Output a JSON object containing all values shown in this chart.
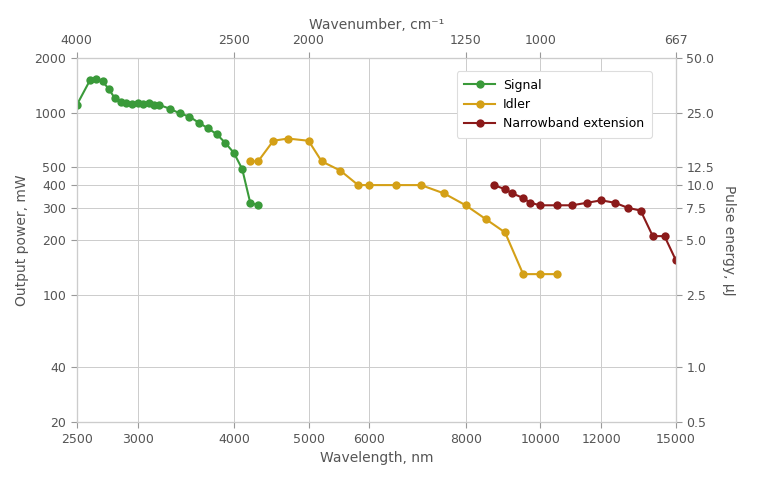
{
  "signal_x": [
    2500,
    2600,
    2650,
    2700,
    2750,
    2800,
    2850,
    2900,
    2950,
    3000,
    3050,
    3100,
    3150,
    3200,
    3300,
    3400,
    3500,
    3600,
    3700,
    3800,
    3900,
    4000,
    4100,
    4200,
    4300
  ],
  "signal_y": [
    1100,
    1500,
    1530,
    1480,
    1350,
    1200,
    1140,
    1130,
    1120,
    1130,
    1120,
    1130,
    1100,
    1100,
    1050,
    990,
    950,
    880,
    820,
    760,
    680,
    600,
    490,
    320,
    310
  ],
  "idler_x": [
    4200,
    4300,
    4500,
    4700,
    5000,
    5200,
    5500,
    5800,
    6000,
    6500,
    7000,
    7500,
    8000,
    8500,
    9000,
    9500,
    10000,
    10500
  ],
  "idler_y": [
    540,
    540,
    700,
    720,
    700,
    540,
    480,
    400,
    400,
    400,
    400,
    360,
    310,
    260,
    220,
    130,
    130,
    130
  ],
  "narrowband_x": [
    8700,
    9000,
    9200,
    9500,
    9700,
    10000,
    10500,
    11000,
    11500,
    12000,
    12500,
    13000,
    13500,
    14000,
    14500,
    15000
  ],
  "narrowband_y": [
    400,
    380,
    360,
    340,
    320,
    310,
    310,
    310,
    320,
    330,
    320,
    300,
    290,
    210,
    210,
    155
  ],
  "signal_color": "#3a9a3a",
  "idler_color": "#d4a017",
  "narrowband_color": "#8b1a1a",
  "bg_color": "#ffffff",
  "grid_color": "#cccccc",
  "xlabel": "Wavelength, nm",
  "ylabel_left": "Output power, mW",
  "ylabel_right": "Pulse energy, μJ",
  "xlabel_top": "Wavenumber, cm⁻¹",
  "legend_signal": "Signal",
  "legend_idler": "Idler",
  "legend_narrowband": "Narrowband extension",
  "ylim_left": [
    20,
    2000
  ],
  "ylim_right": [
    0.5,
    50.0
  ],
  "xlim": [
    2500,
    15000
  ],
  "yticks_left": [
    20,
    40,
    100,
    200,
    300,
    400,
    500,
    1000,
    2000
  ],
  "yticks_left_labels": [
    "20",
    "40",
    "100",
    "200",
    "300",
    "400",
    "500",
    "1000",
    "2000"
  ],
  "yticks_right": [
    0.5,
    1.0,
    2.5,
    5.0,
    7.5,
    10.0,
    12.5,
    25.0,
    50.0
  ],
  "yticks_right_labels": [
    "0.5",
    "1.0",
    "2.5",
    "5.0",
    "7.5",
    "10.0",
    "12.5",
    "25.0",
    "50.0"
  ],
  "xticks_bottom": [
    2500,
    3000,
    4000,
    5000,
    6000,
    8000,
    10000,
    12000,
    15000
  ],
  "xticks_bottom_labels": [
    "2500",
    "3000",
    "4000",
    "5000",
    "6000",
    "8000",
    "10000",
    "12000",
    "15000"
  ],
  "wavenumber_ticks_wl": [
    2500.0,
    4000.0,
    5000.0,
    8000.0,
    10000.0,
    15000.0
  ],
  "wavenumber_ticks_labels": [
    "4000",
    "2500",
    "2000",
    "1250",
    "1000",
    "667"
  ],
  "tick_color": "#999999",
  "label_color": "#555555",
  "spine_color": "#cccccc",
  "marker_size": 6,
  "line_width": 1.5
}
